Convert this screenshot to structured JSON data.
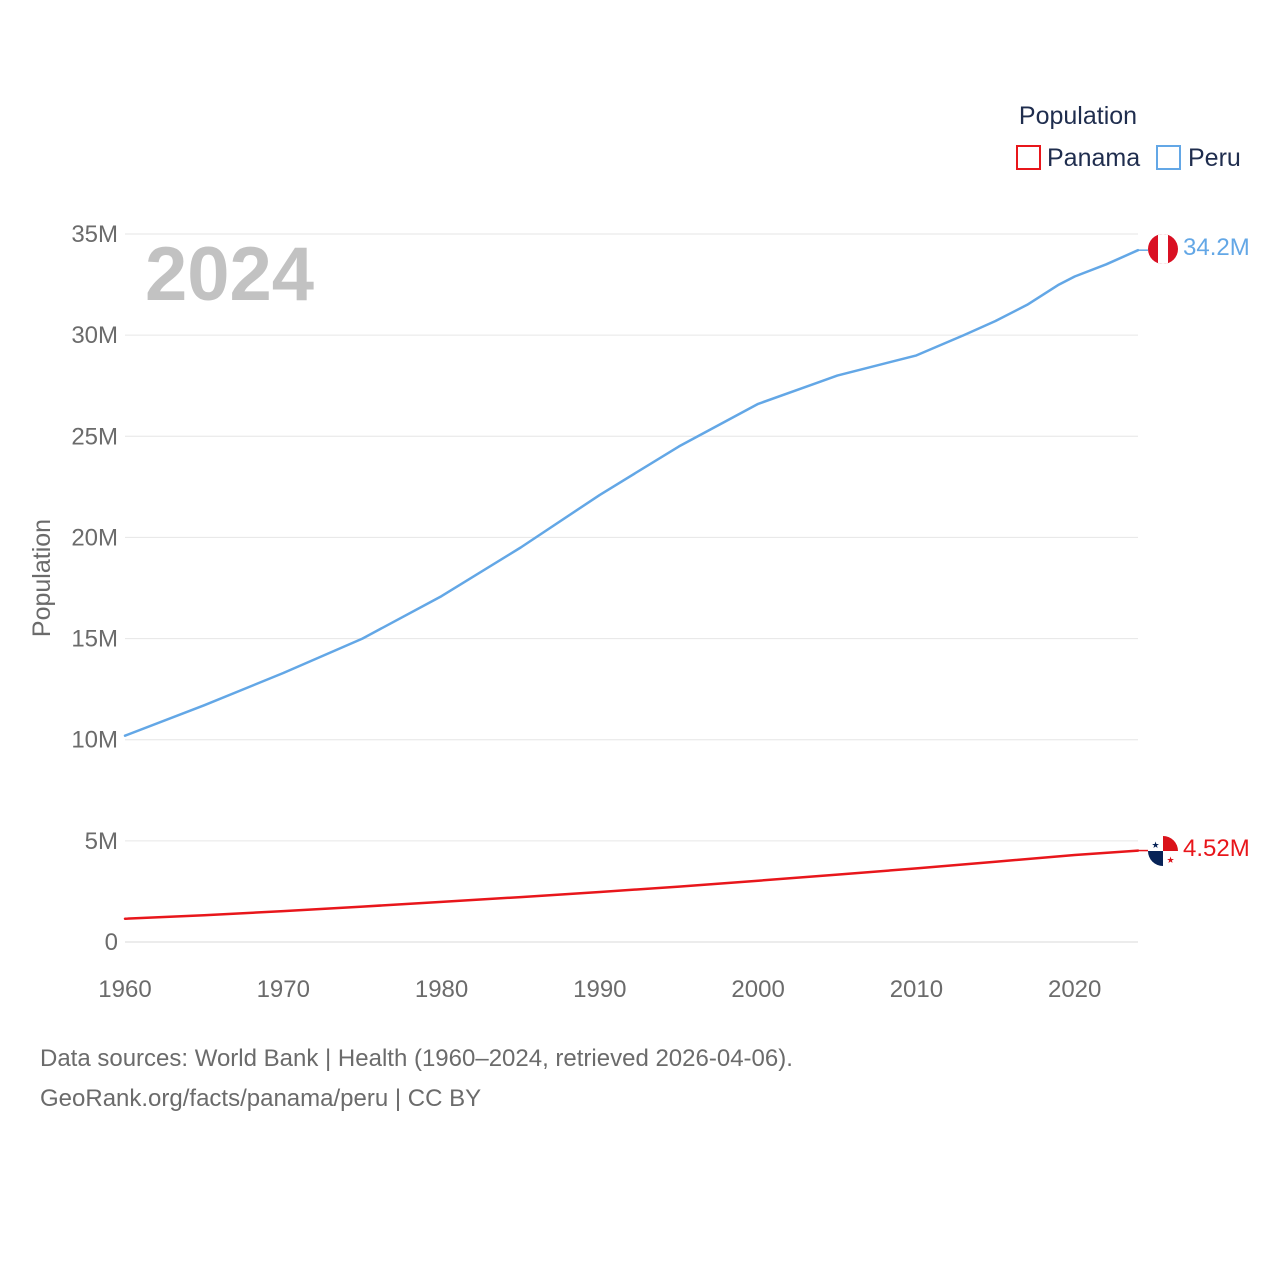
{
  "chart_data": {
    "type": "line",
    "current_year": "2024",
    "ylabel": "Population",
    "xlabel": "",
    "xlim": [
      1960,
      2024
    ],
    "ylim": [
      0,
      35000000
    ],
    "x_ticks": [
      {
        "value": 1960,
        "label": "1960"
      },
      {
        "value": 1970,
        "label": "1970"
      },
      {
        "value": 1980,
        "label": "1980"
      },
      {
        "value": 1990,
        "label": "1990"
      },
      {
        "value": 2000,
        "label": "2000"
      },
      {
        "value": 2010,
        "label": "2010"
      },
      {
        "value": 2020,
        "label": "2020"
      }
    ],
    "y_ticks": [
      {
        "value": 0,
        "label": "0"
      },
      {
        "value": 5000000,
        "label": "5M"
      },
      {
        "value": 10000000,
        "label": "10M"
      },
      {
        "value": 15000000,
        "label": "15M"
      },
      {
        "value": 20000000,
        "label": "20M"
      },
      {
        "value": 25000000,
        "label": "25M"
      },
      {
        "value": 30000000,
        "label": "30M"
      },
      {
        "value": 35000000,
        "label": "35M"
      }
    ],
    "grid": true,
    "legend": {
      "title": "Population",
      "position": "top-right",
      "items": [
        {
          "name": "Panama",
          "color": "#e8161b"
        },
        {
          "name": "Peru",
          "color": "#63a7e6"
        }
      ]
    },
    "series": [
      {
        "name": "Peru",
        "color": "#63a7e6",
        "end_label": "34.2M",
        "flag": "peru-flag-icon",
        "points": [
          [
            1960,
            10200000
          ],
          [
            1965,
            11700000
          ],
          [
            1970,
            13300000
          ],
          [
            1975,
            15000000
          ],
          [
            1980,
            17100000
          ],
          [
            1985,
            19500000
          ],
          [
            1990,
            22100000
          ],
          [
            1995,
            24500000
          ],
          [
            2000,
            26600000
          ],
          [
            2005,
            28000000
          ],
          [
            2010,
            29000000
          ],
          [
            2013,
            30000000
          ],
          [
            2015,
            30700000
          ],
          [
            2017,
            31500000
          ],
          [
            2019,
            32500000
          ],
          [
            2020,
            32900000
          ],
          [
            2022,
            33500000
          ],
          [
            2024,
            34200000
          ]
        ]
      },
      {
        "name": "Panama",
        "color": "#e8161b",
        "end_label": "4.52M",
        "flag": "panama-flag-icon",
        "points": [
          [
            1960,
            1150000
          ],
          [
            1965,
            1320000
          ],
          [
            1970,
            1530000
          ],
          [
            1975,
            1750000
          ],
          [
            1980,
            1980000
          ],
          [
            1985,
            2220000
          ],
          [
            1990,
            2470000
          ],
          [
            1995,
            2740000
          ],
          [
            2000,
            3030000
          ],
          [
            2005,
            3330000
          ],
          [
            2010,
            3640000
          ],
          [
            2015,
            3970000
          ],
          [
            2020,
            4300000
          ],
          [
            2024,
            4520000
          ]
        ]
      }
    ]
  },
  "footer": {
    "line1": "Data sources: World Bank | Health (1960–2024, retrieved 2026-04-06).",
    "line2": "GeoRank.org/facts/panama/peru | CC BY"
  }
}
